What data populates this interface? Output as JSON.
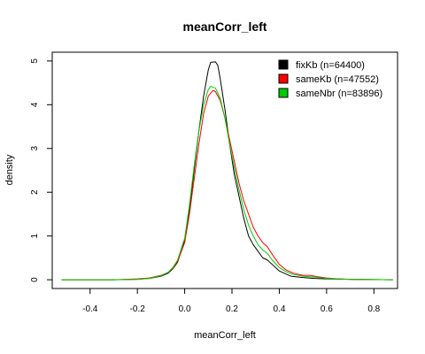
{
  "chart_data": {
    "type": "line",
    "title": "meanCorr_left",
    "xlabel": "meanCorr_left",
    "ylabel": "density",
    "xlim": [
      -0.56,
      0.9
    ],
    "ylim": [
      -0.2,
      5.2
    ],
    "x_ticks": [
      -0.4,
      -0.2,
      0.0,
      0.2,
      0.4,
      0.6,
      0.8
    ],
    "x_tick_labels": [
      "-0.4",
      "-0.2",
      "0.0",
      "0.2",
      "0.4",
      "0.6",
      "0.8"
    ],
    "y_ticks": [
      0,
      1,
      2,
      3,
      4,
      5
    ],
    "y_tick_labels": [
      "0",
      "1",
      "2",
      "3",
      "4",
      "5"
    ],
    "legend_position": "top-right",
    "series": [
      {
        "name": "fixKb (n=64400)",
        "color": "#000000",
        "points": [
          [
            -0.52,
            0.0
          ],
          [
            -0.3,
            0.0
          ],
          [
            -0.2,
            0.01
          ],
          [
            -0.15,
            0.03
          ],
          [
            -0.1,
            0.08
          ],
          [
            -0.07,
            0.15
          ],
          [
            -0.05,
            0.25
          ],
          [
            -0.03,
            0.4
          ],
          [
            0.0,
            0.9
          ],
          [
            0.02,
            1.6
          ],
          [
            0.04,
            2.5
          ],
          [
            0.06,
            3.4
          ],
          [
            0.08,
            4.2
          ],
          [
            0.1,
            4.8
          ],
          [
            0.11,
            4.97
          ],
          [
            0.13,
            4.98
          ],
          [
            0.14,
            4.9
          ],
          [
            0.15,
            4.6
          ],
          [
            0.17,
            3.9
          ],
          [
            0.19,
            3.1
          ],
          [
            0.21,
            2.4
          ],
          [
            0.23,
            1.9
          ],
          [
            0.25,
            1.4
          ],
          [
            0.27,
            1.0
          ],
          [
            0.29,
            0.8
          ],
          [
            0.31,
            0.65
          ],
          [
            0.33,
            0.5
          ],
          [
            0.35,
            0.45
          ],
          [
            0.37,
            0.35
          ],
          [
            0.4,
            0.2
          ],
          [
            0.45,
            0.08
          ],
          [
            0.5,
            0.05
          ],
          [
            0.55,
            0.03
          ],
          [
            0.6,
            0.02
          ],
          [
            0.7,
            0.01
          ],
          [
            0.88,
            0.0
          ]
        ]
      },
      {
        "name": "sameKb (n=47552)",
        "color": "#ff0000",
        "points": [
          [
            -0.52,
            0.0
          ],
          [
            -0.3,
            0.0
          ],
          [
            -0.2,
            0.02
          ],
          [
            -0.15,
            0.04
          ],
          [
            -0.1,
            0.1
          ],
          [
            -0.07,
            0.17
          ],
          [
            -0.05,
            0.26
          ],
          [
            -0.03,
            0.42
          ],
          [
            0.0,
            0.85
          ],
          [
            0.02,
            1.5
          ],
          [
            0.04,
            2.3
          ],
          [
            0.06,
            3.1
          ],
          [
            0.08,
            3.8
          ],
          [
            0.1,
            4.2
          ],
          [
            0.12,
            4.33
          ],
          [
            0.13,
            4.3
          ],
          [
            0.15,
            4.1
          ],
          [
            0.17,
            3.7
          ],
          [
            0.19,
            3.2
          ],
          [
            0.21,
            2.7
          ],
          [
            0.23,
            2.2
          ],
          [
            0.25,
            1.8
          ],
          [
            0.27,
            1.5
          ],
          [
            0.29,
            1.2
          ],
          [
            0.31,
            1.0
          ],
          [
            0.33,
            0.85
          ],
          [
            0.35,
            0.75
          ],
          [
            0.37,
            0.58
          ],
          [
            0.4,
            0.35
          ],
          [
            0.43,
            0.22
          ],
          [
            0.46,
            0.15
          ],
          [
            0.5,
            0.1
          ],
          [
            0.53,
            0.1
          ],
          [
            0.56,
            0.07
          ],
          [
            0.6,
            0.04
          ],
          [
            0.65,
            0.02
          ],
          [
            0.7,
            0.01
          ],
          [
            0.88,
            0.0
          ]
        ]
      },
      {
        "name": "sameNbr (n=83896)",
        "color": "#00cd00",
        "points": [
          [
            -0.52,
            0.0
          ],
          [
            -0.3,
            0.0
          ],
          [
            -0.2,
            0.01
          ],
          [
            -0.15,
            0.03
          ],
          [
            -0.1,
            0.09
          ],
          [
            -0.07,
            0.17
          ],
          [
            -0.05,
            0.28
          ],
          [
            -0.03,
            0.45
          ],
          [
            0.0,
            0.95
          ],
          [
            0.02,
            1.7
          ],
          [
            0.04,
            2.6
          ],
          [
            0.06,
            3.4
          ],
          [
            0.08,
            4.0
          ],
          [
            0.1,
            4.35
          ],
          [
            0.11,
            4.42
          ],
          [
            0.13,
            4.38
          ],
          [
            0.15,
            4.15
          ],
          [
            0.17,
            3.7
          ],
          [
            0.19,
            3.1
          ],
          [
            0.21,
            2.55
          ],
          [
            0.23,
            2.05
          ],
          [
            0.25,
            1.6
          ],
          [
            0.27,
            1.25
          ],
          [
            0.29,
            1.0
          ],
          [
            0.31,
            0.8
          ],
          [
            0.33,
            0.68
          ],
          [
            0.35,
            0.6
          ],
          [
            0.37,
            0.45
          ],
          [
            0.4,
            0.28
          ],
          [
            0.43,
            0.18
          ],
          [
            0.46,
            0.12
          ],
          [
            0.5,
            0.08
          ],
          [
            0.55,
            0.06
          ],
          [
            0.6,
            0.03
          ],
          [
            0.65,
            0.02
          ],
          [
            0.7,
            0.01
          ],
          [
            0.88,
            0.0
          ]
        ]
      }
    ]
  }
}
